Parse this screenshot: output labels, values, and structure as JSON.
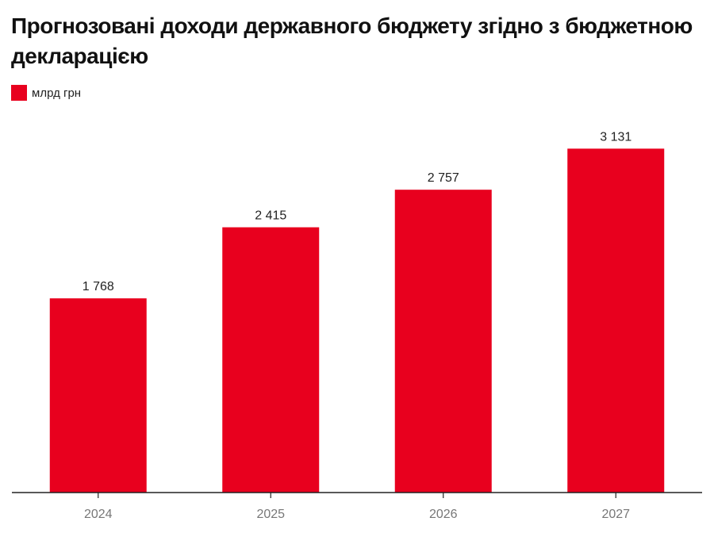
{
  "chart_data": {
    "type": "bar",
    "title": "Прогнозовані доходи державного бюджету згідно з бюджетною декларацією",
    "categories": [
      "2024",
      "2025",
      "2026",
      "2027"
    ],
    "series": [
      {
        "name": "млрд грн",
        "values": [
          1768,
          2415,
          2757,
          3131
        ]
      }
    ],
    "value_labels": [
      "1 768",
      "2 415",
      "2 757",
      "3 131"
    ],
    "xlabel": "",
    "ylabel": "",
    "ylim": [
      0,
      3300
    ],
    "grid": false,
    "legend_position": "top-left",
    "colors": {
      "bar": "#e8001e",
      "axis": "#222222",
      "tick_label": "#777777"
    }
  }
}
